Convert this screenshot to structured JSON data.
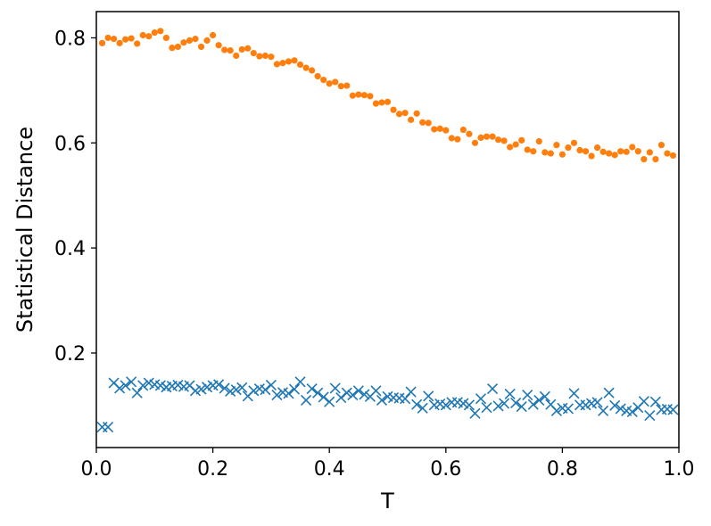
{
  "chart_data": {
    "type": "scatter",
    "title": "",
    "xlabel": "T",
    "ylabel": "Statistical Distance",
    "xlim": [
      0.0,
      1.0
    ],
    "ylim": [
      0.02,
      0.85
    ],
    "xticks": [
      0.0,
      0.2,
      0.4,
      0.6,
      0.8,
      1.0
    ],
    "xtick_labels": [
      "0.0",
      "0.2",
      "0.4",
      "0.6",
      "0.8",
      "1.0"
    ],
    "yticks": [
      0.2,
      0.4,
      0.6,
      0.8
    ],
    "ytick_labels": [
      "0.2",
      "0.4",
      "0.6",
      "0.8"
    ],
    "grid": false,
    "legend": "none",
    "series": [
      {
        "marker": "x",
        "color": "#1f77b4",
        "x": [
          0.01,
          0.02,
          0.03,
          0.04,
          0.05,
          0.06,
          0.07,
          0.08,
          0.09,
          0.1,
          0.11,
          0.12,
          0.13,
          0.14,
          0.15,
          0.16,
          0.17,
          0.18,
          0.19,
          0.2,
          0.21,
          0.22,
          0.23,
          0.24,
          0.25,
          0.26,
          0.27,
          0.28,
          0.29,
          0.3,
          0.31,
          0.32,
          0.33,
          0.34,
          0.35,
          0.36,
          0.37,
          0.38,
          0.39,
          0.4,
          0.41,
          0.42,
          0.43,
          0.44,
          0.45,
          0.46,
          0.47,
          0.48,
          0.49,
          0.5,
          0.51,
          0.52,
          0.53,
          0.54,
          0.55,
          0.56,
          0.57,
          0.58,
          0.59,
          0.6,
          0.61,
          0.62,
          0.63,
          0.64,
          0.65,
          0.66,
          0.67,
          0.68,
          0.69,
          0.7,
          0.71,
          0.72,
          0.73,
          0.74,
          0.75,
          0.76,
          0.77,
          0.78,
          0.79,
          0.8,
          0.81,
          0.82,
          0.83,
          0.84,
          0.85,
          0.86,
          0.87,
          0.88,
          0.89,
          0.9,
          0.91,
          0.92,
          0.93,
          0.94,
          0.95,
          0.96,
          0.97,
          0.98,
          0.99
        ],
        "y": [
          0.059,
          0.059,
          0.143,
          0.133,
          0.138,
          0.145,
          0.124,
          0.138,
          0.143,
          0.14,
          0.138,
          0.135,
          0.137,
          0.139,
          0.136,
          0.138,
          0.128,
          0.131,
          0.135,
          0.138,
          0.14,
          0.133,
          0.127,
          0.13,
          0.134,
          0.118,
          0.128,
          0.132,
          0.13,
          0.139,
          0.12,
          0.125,
          0.123,
          0.131,
          0.145,
          0.11,
          0.132,
          0.124,
          0.116,
          0.107,
          0.133,
          0.115,
          0.124,
          0.12,
          0.128,
          0.121,
          0.117,
          0.128,
          0.11,
          0.117,
          0.115,
          0.114,
          0.113,
          0.126,
          0.102,
          0.095,
          0.118,
          0.101,
          0.103,
          0.101,
          0.106,
          0.106,
          0.104,
          0.101,
          0.085,
          0.113,
          0.096,
          0.132,
          0.099,
          0.104,
          0.122,
          0.105,
          0.098,
          0.12,
          0.102,
          0.11,
          0.117,
          0.102,
          0.09,
          0.095,
          0.094,
          0.123,
          0.101,
          0.101,
          0.104,
          0.106,
          0.09,
          0.124,
          0.1,
          0.094,
          0.09,
          0.088,
          0.096,
          0.108,
          0.081,
          0.107,
          0.092,
          0.093,
          0.092
        ]
      },
      {
        "marker": "o",
        "color": "#ff7f0e",
        "x": [
          0.01,
          0.02,
          0.03,
          0.04,
          0.05,
          0.06,
          0.07,
          0.08,
          0.09,
          0.1,
          0.11,
          0.12,
          0.13,
          0.14,
          0.15,
          0.16,
          0.17,
          0.18,
          0.19,
          0.2,
          0.21,
          0.22,
          0.23,
          0.24,
          0.25,
          0.26,
          0.27,
          0.28,
          0.29,
          0.3,
          0.31,
          0.32,
          0.33,
          0.34,
          0.35,
          0.36,
          0.37,
          0.38,
          0.39,
          0.4,
          0.41,
          0.42,
          0.43,
          0.44,
          0.45,
          0.46,
          0.47,
          0.48,
          0.49,
          0.5,
          0.51,
          0.52,
          0.53,
          0.54,
          0.55,
          0.56,
          0.57,
          0.58,
          0.59,
          0.6,
          0.61,
          0.62,
          0.63,
          0.64,
          0.65,
          0.66,
          0.67,
          0.68,
          0.69,
          0.7,
          0.71,
          0.72,
          0.73,
          0.74,
          0.75,
          0.76,
          0.77,
          0.78,
          0.79,
          0.8,
          0.81,
          0.82,
          0.83,
          0.84,
          0.85,
          0.86,
          0.87,
          0.88,
          0.89,
          0.9,
          0.91,
          0.92,
          0.93,
          0.94,
          0.95,
          0.96,
          0.97,
          0.98,
          0.99
        ],
        "y": [
          0.79,
          0.8,
          0.798,
          0.79,
          0.797,
          0.799,
          0.789,
          0.805,
          0.803,
          0.81,
          0.813,
          0.8,
          0.781,
          0.783,
          0.791,
          0.795,
          0.798,
          0.783,
          0.795,
          0.805,
          0.786,
          0.777,
          0.776,
          0.766,
          0.778,
          0.78,
          0.771,
          0.765,
          0.766,
          0.764,
          0.75,
          0.752,
          0.755,
          0.757,
          0.749,
          0.743,
          0.738,
          0.727,
          0.72,
          0.713,
          0.716,
          0.708,
          0.709,
          0.69,
          0.692,
          0.691,
          0.689,
          0.675,
          0.677,
          0.678,
          0.663,
          0.655,
          0.657,
          0.644,
          0.656,
          0.639,
          0.638,
          0.626,
          0.627,
          0.624,
          0.609,
          0.607,
          0.625,
          0.617,
          0.6,
          0.61,
          0.612,
          0.612,
          0.606,
          0.604,
          0.592,
          0.597,
          0.605,
          0.587,
          0.584,
          0.603,
          0.582,
          0.58,
          0.596,
          0.578,
          0.591,
          0.6,
          0.586,
          0.584,
          0.575,
          0.591,
          0.583,
          0.58,
          0.577,
          0.584,
          0.583,
          0.592,
          0.584,
          0.569,
          0.582,
          0.569,
          0.596,
          0.58,
          0.576
        ]
      }
    ]
  }
}
